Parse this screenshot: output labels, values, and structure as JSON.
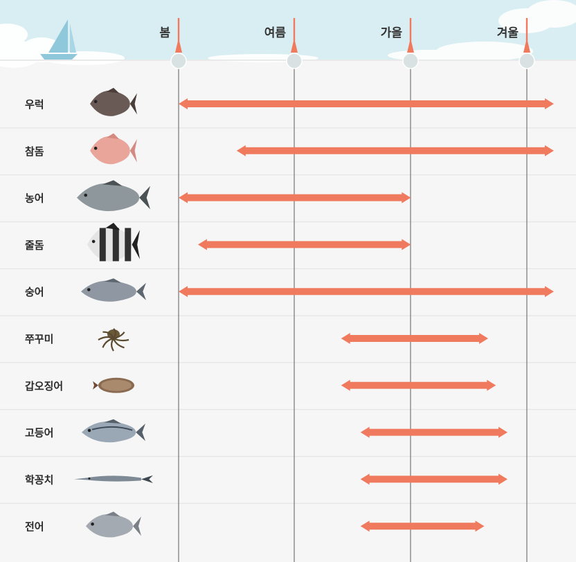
{
  "chart_data": {
    "type": "range",
    "seasons": [
      "봄",
      "여름",
      "가을",
      "겨울"
    ],
    "unit": "month",
    "xlim": [
      3,
      13
    ],
    "bars": [
      {
        "label": "우럭",
        "fish_icon": "rockfish-icon",
        "start": 3,
        "end": 13
      },
      {
        "label": "참돔",
        "fish_icon": "red-seabream-icon",
        "start": 4.5,
        "end": 13
      },
      {
        "label": "농어",
        "fish_icon": "sea-bass-icon",
        "start": 3,
        "end": 9
      },
      {
        "label": "줄돔",
        "fish_icon": "striped-beakperch-icon",
        "start": 3.5,
        "end": 9
      },
      {
        "label": "숭어",
        "fish_icon": "mullet-icon",
        "start": 3,
        "end": 13
      },
      {
        "label": "쭈꾸미",
        "fish_icon": "webfoot-octopus-icon",
        "start": 7.2,
        "end": 11
      },
      {
        "label": "갑오징어",
        "fish_icon": "cuttlefish-icon",
        "start": 7.2,
        "end": 11.2
      },
      {
        "label": "고등어",
        "fish_icon": "mackerel-icon",
        "start": 7.7,
        "end": 11.5
      },
      {
        "label": "학꽁치",
        "fish_icon": "needlefish-icon",
        "start": 7.7,
        "end": 11.5
      },
      {
        "label": "전어",
        "fish_icon": "gizzard-shad-icon",
        "start": 7.7,
        "end": 10.9
      }
    ],
    "colors": {
      "bar": "#f07a5e",
      "grid": "#7d7d7d",
      "sky": "#d9eef2",
      "boat": "#8fc8da"
    }
  }
}
